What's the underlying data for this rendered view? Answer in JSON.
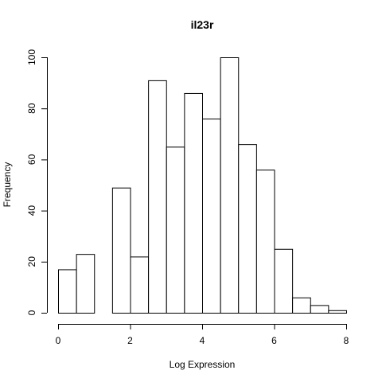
{
  "chart_data": {
    "type": "bar",
    "title": "il23r",
    "xlabel": "Log Expression",
    "ylabel": "Frequency",
    "xlim": [
      0,
      8
    ],
    "ylim": [
      0,
      100
    ],
    "bin_width": 0.5,
    "bins": [
      {
        "start": 0.0,
        "end": 0.5,
        "count": 17
      },
      {
        "start": 0.5,
        "end": 1.0,
        "count": 23
      },
      {
        "start": 1.0,
        "end": 1.5,
        "count": 0
      },
      {
        "start": 1.5,
        "end": 2.0,
        "count": 49
      },
      {
        "start": 2.0,
        "end": 2.5,
        "count": 22
      },
      {
        "start": 2.5,
        "end": 3.0,
        "count": 91
      },
      {
        "start": 3.0,
        "end": 3.5,
        "count": 65
      },
      {
        "start": 3.5,
        "end": 4.0,
        "count": 86
      },
      {
        "start": 4.0,
        "end": 4.5,
        "count": 76
      },
      {
        "start": 4.5,
        "end": 5.0,
        "count": 100
      },
      {
        "start": 5.0,
        "end": 5.5,
        "count": 66
      },
      {
        "start": 5.5,
        "end": 6.0,
        "count": 56
      },
      {
        "start": 6.0,
        "end": 6.5,
        "count": 25
      },
      {
        "start": 6.5,
        "end": 7.0,
        "count": 6
      },
      {
        "start": 7.0,
        "end": 7.5,
        "count": 3
      },
      {
        "start": 7.5,
        "end": 8.0,
        "count": 1
      }
    ],
    "x_ticks": [
      "0",
      "2",
      "4",
      "6",
      "8"
    ],
    "y_ticks": [
      "0",
      "20",
      "40",
      "60",
      "80",
      "100"
    ],
    "grid": false,
    "legend": "none"
  }
}
